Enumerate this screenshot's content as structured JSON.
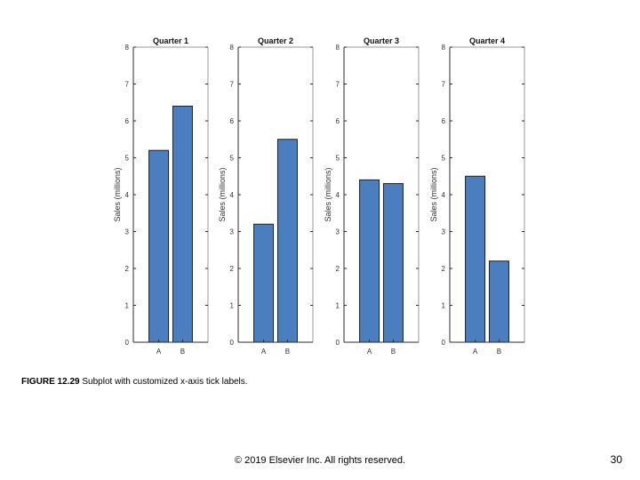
{
  "figure": {
    "caption_label": "FIGURE 12.29",
    "caption_text": "Subplot with customized x-axis tick labels."
  },
  "footer": {
    "copyright": "© 2019 Elsevier Inc. All rights reserved.",
    "page_number": "30"
  },
  "colors": {
    "bar_fill": "#4a7ebf",
    "bar_edge": "#1f1f1f",
    "axis": "#2b2b2b",
    "tick_text": "#333333"
  },
  "chart_data": [
    {
      "type": "bar",
      "title": "Quarter 1",
      "categories": [
        "A",
        "B"
      ],
      "values": [
        5.2,
        6.4
      ],
      "xlabel": "",
      "ylabel": "Sales (millions)",
      "ylim": [
        0,
        8
      ],
      "yticks": [
        0,
        1,
        2,
        3,
        4,
        5,
        6,
        7,
        8
      ],
      "grid": false
    },
    {
      "type": "bar",
      "title": "Quarter 2",
      "categories": [
        "A",
        "B"
      ],
      "values": [
        3.2,
        5.5
      ],
      "xlabel": "",
      "ylabel": "Sales (millions)",
      "ylim": [
        0,
        8
      ],
      "yticks": [
        0,
        1,
        2,
        3,
        4,
        5,
        6,
        7,
        8
      ],
      "grid": false
    },
    {
      "type": "bar",
      "title": "Quarter 3",
      "categories": [
        "A",
        "B"
      ],
      "values": [
        4.4,
        4.3
      ],
      "xlabel": "",
      "ylabel": "Sales (millions)",
      "ylim": [
        0,
        8
      ],
      "yticks": [
        0,
        1,
        2,
        3,
        4,
        5,
        6,
        7,
        8
      ],
      "grid": false
    },
    {
      "type": "bar",
      "title": "Quarter 4",
      "categories": [
        "A",
        "B"
      ],
      "values": [
        4.5,
        2.2
      ],
      "xlabel": "",
      "ylabel": "Sales (millions)",
      "ylim": [
        0,
        8
      ],
      "yticks": [
        0,
        1,
        2,
        3,
        4,
        5,
        6,
        7,
        8
      ],
      "grid": false
    }
  ]
}
